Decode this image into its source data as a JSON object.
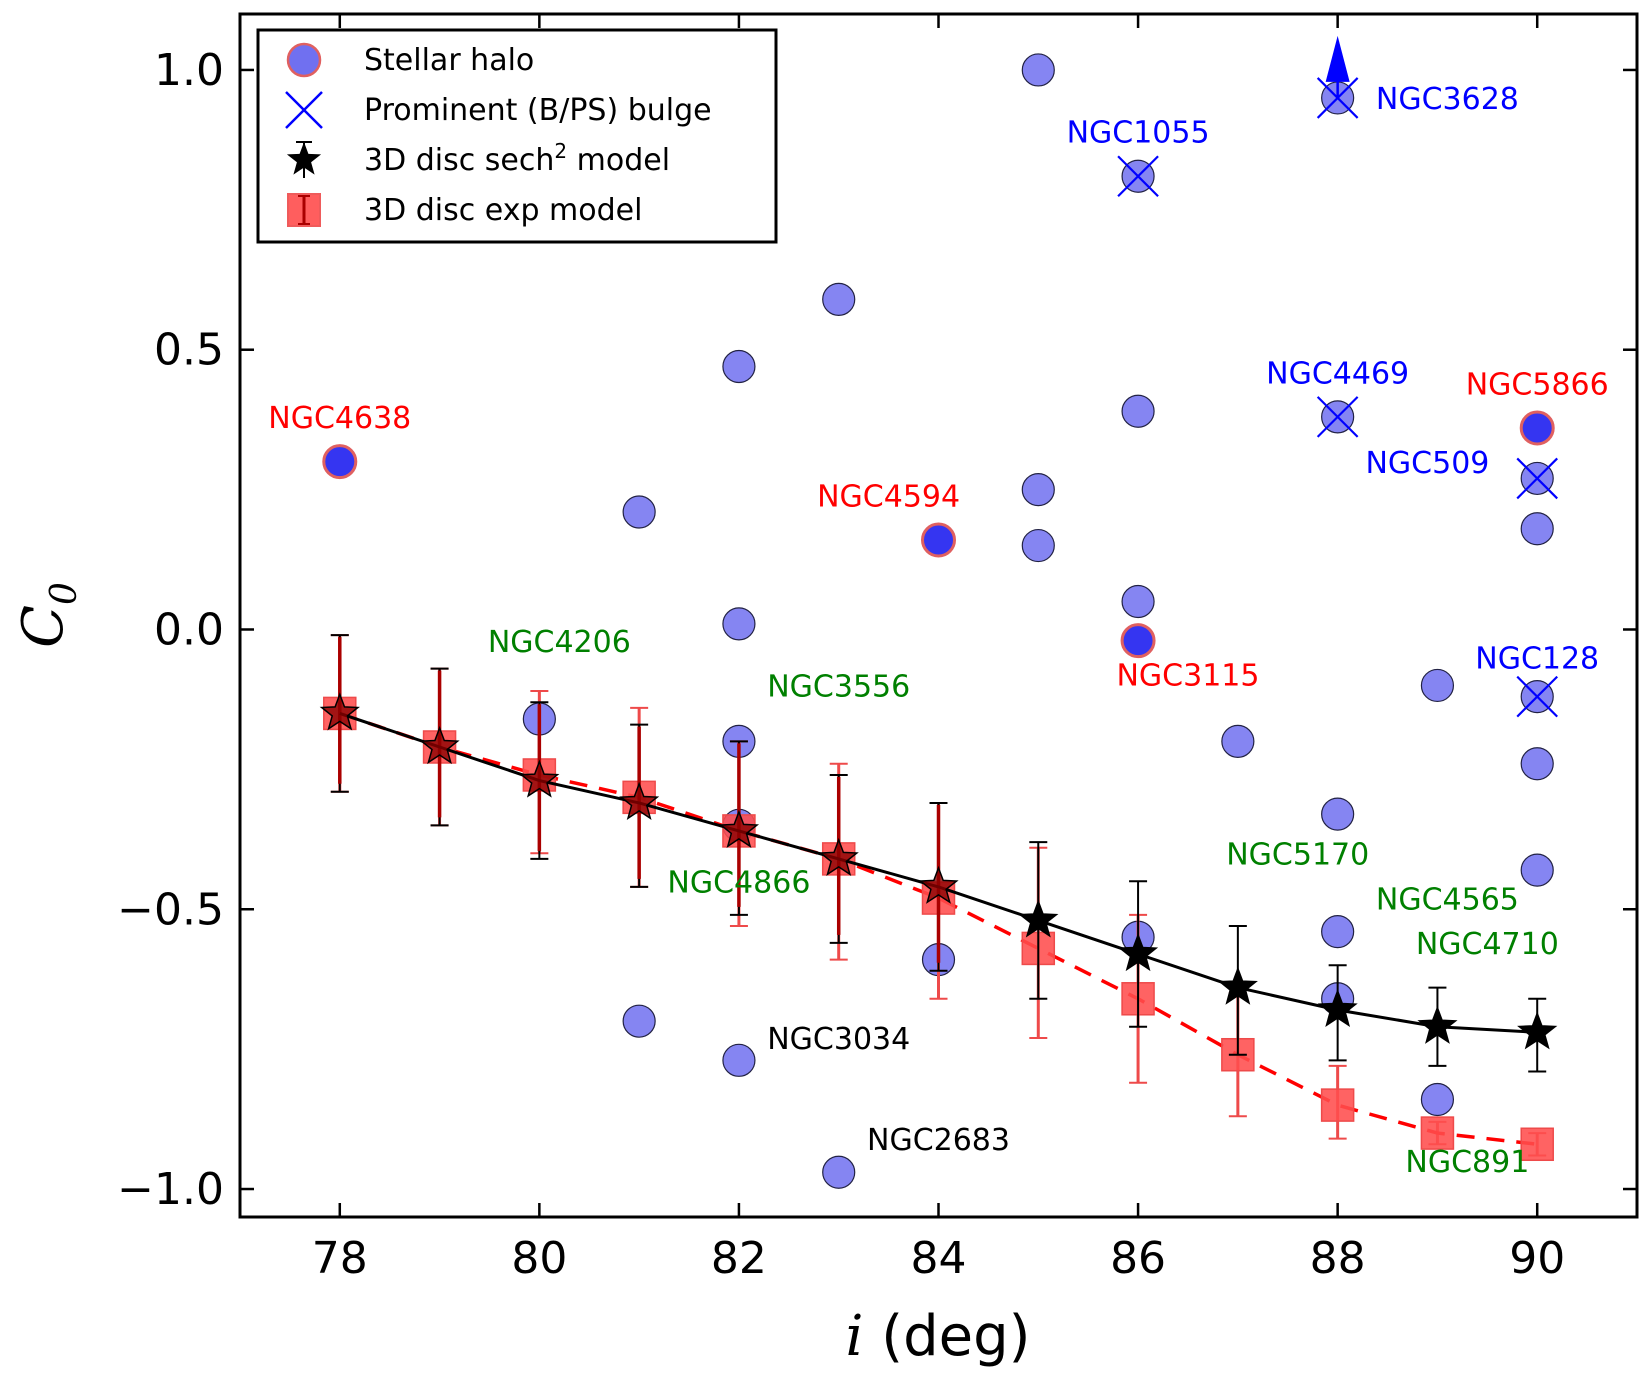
{
  "chart_data": {
    "type": "scatter",
    "xlabel": "i (deg)",
    "xlabel_symbol": "i",
    "xlabel_unit": "(deg)",
    "ylabel": "C0",
    "ylabel_symbol": "C",
    "ylabel_subscript": "0",
    "xlim": [
      77,
      91
    ],
    "ylim": [
      -1.05,
      1.1
    ],
    "x_ticks": [
      78,
      80,
      82,
      84,
      86,
      88,
      90
    ],
    "x_tick_labels": [
      "78",
      "80",
      "82",
      "84",
      "86",
      "88",
      "90"
    ],
    "y_ticks": [
      1.0,
      0.5,
      0.0,
      -0.5,
      -1.0
    ],
    "y_tick_labels": [
      "1.0",
      "0.5",
      "0.0",
      "−0.5",
      "−1.0"
    ],
    "grid": false,
    "legend": {
      "placement": "top-left",
      "entries": [
        {
          "label": "Stellar halo",
          "marker": "circle"
        },
        {
          "label": "Prominent (B/PS) bulge",
          "marker": "x"
        },
        {
          "label_main": "3D disc sech",
          "label_sup": "2",
          "label_tail": " model",
          "marker": "star"
        },
        {
          "label": "3D disc exp model",
          "marker": "square"
        }
      ]
    },
    "colors": {
      "halo_fill": "#7070f0",
      "halo_dark_fill": "#2a2af0",
      "halo_ring": "#e06060",
      "bulge_cross": "#0000ff",
      "sech2_line": "#000000",
      "exp_line": "#ff0000",
      "exp_fill": "#ff4d4d",
      "exp_err": "#ee4a4a",
      "dark_err": "#aa0000",
      "label_blue": "#0000ff",
      "label_red": "#ff0000",
      "label_green": "#008000",
      "label_black": "#000000"
    },
    "galaxies": [
      {
        "x": 78,
        "y": 0.3,
        "ring": true,
        "dark": true
      },
      {
        "x": 80,
        "y": -0.16
      },
      {
        "x": 81,
        "y": 0.21
      },
      {
        "x": 81,
        "y": -0.7
      },
      {
        "x": 82,
        "y": 0.47
      },
      {
        "x": 82,
        "y": 0.01
      },
      {
        "x": 82,
        "y": -0.2
      },
      {
        "x": 82,
        "y": -0.35
      },
      {
        "x": 82,
        "y": -0.77
      },
      {
        "x": 83,
        "y": 0.59
      },
      {
        "x": 83,
        "y": -0.97
      },
      {
        "x": 84,
        "y": 0.16,
        "ring": true,
        "dark": true
      },
      {
        "x": 84,
        "y": -0.59
      },
      {
        "x": 85,
        "y": 1.0
      },
      {
        "x": 85,
        "y": 0.25
      },
      {
        "x": 85,
        "y": 0.15
      },
      {
        "x": 86,
        "y": 0.81,
        "bulge": true
      },
      {
        "x": 86,
        "y": 0.39
      },
      {
        "x": 86,
        "y": 0.05
      },
      {
        "x": 86,
        "y": -0.02,
        "ring": true,
        "dark": true
      },
      {
        "x": 86,
        "y": -0.55
      },
      {
        "x": 87,
        "y": -0.2
      },
      {
        "x": 88,
        "y": 0.95,
        "bulge": true,
        "arrow": true
      },
      {
        "x": 88,
        "y": 0.38,
        "bulge": true
      },
      {
        "x": 88,
        "y": -0.33
      },
      {
        "x": 88,
        "y": -0.54
      },
      {
        "x": 88,
        "y": -0.66
      },
      {
        "x": 89,
        "y": -0.1
      },
      {
        "x": 89,
        "y": -0.84
      },
      {
        "x": 90,
        "y": 0.36,
        "ring": true,
        "dark": true
      },
      {
        "x": 90,
        "y": 0.27,
        "bulge": true
      },
      {
        "x": 90,
        "y": 0.18
      },
      {
        "x": 90,
        "y": -0.12,
        "bulge": true
      },
      {
        "x": 90,
        "y": -0.24
      },
      {
        "x": 90,
        "y": -0.43
      }
    ],
    "series": [
      {
        "name": "3D disc sech2 model",
        "x": [
          78,
          79,
          80,
          81,
          82,
          83,
          84,
          85,
          86,
          87,
          88,
          89,
          90
        ],
        "y": [
          -0.15,
          -0.21,
          -0.27,
          -0.31,
          -0.36,
          -0.41,
          -0.46,
          -0.52,
          -0.58,
          -0.64,
          -0.68,
          -0.71,
          -0.72
        ],
        "err_lo": [
          -0.29,
          -0.35,
          -0.41,
          -0.46,
          -0.51,
          -0.56,
          -0.61,
          -0.66,
          -0.71,
          -0.76,
          -0.77,
          -0.78,
          -0.79
        ],
        "err_hi": [
          -0.01,
          -0.07,
          -0.13,
          -0.17,
          -0.2,
          -0.26,
          -0.31,
          -0.38,
          -0.45,
          -0.53,
          -0.6,
          -0.64,
          -0.66
        ]
      },
      {
        "name": "3D disc exp model",
        "x": [
          78,
          79,
          80,
          81,
          82,
          83,
          84,
          85,
          86,
          87,
          88,
          89,
          90
        ],
        "y": [
          -0.15,
          -0.21,
          -0.26,
          -0.3,
          -0.36,
          -0.41,
          -0.48,
          -0.57,
          -0.66,
          -0.76,
          -0.85,
          -0.9,
          -0.92
        ],
        "err_lo": [
          -0.29,
          -0.35,
          -0.4,
          -0.46,
          -0.53,
          -0.59,
          -0.66,
          -0.73,
          -0.81,
          -0.87,
          -0.91,
          -0.92,
          -0.94
        ],
        "err_hi": [
          -0.01,
          -0.07,
          -0.11,
          -0.14,
          -0.2,
          -0.24,
          -0.31,
          -0.39,
          -0.51,
          -0.65,
          -0.78,
          -0.88,
          -0.9
        ]
      }
    ],
    "annotations": [
      {
        "text": "NGC4638",
        "x": 78.0,
        "y": 0.36,
        "color": "red"
      },
      {
        "text": "NGC4594",
        "x": 83.5,
        "y": 0.22,
        "color": "red"
      },
      {
        "text": "NGC3115",
        "x": 86.5,
        "y": -0.1,
        "color": "red"
      },
      {
        "text": "NGC5866",
        "x": 90.0,
        "y": 0.42,
        "color": "red"
      },
      {
        "text": "NGC1055",
        "x": 86.0,
        "y": 0.87,
        "color": "blue"
      },
      {
        "text": "NGC3628",
        "x": 89.1,
        "y": 0.93,
        "color": "blue"
      },
      {
        "text": "NGC4469",
        "x": 88.0,
        "y": 0.44,
        "color": "blue"
      },
      {
        "text": "NGC509",
        "x": 88.9,
        "y": 0.28,
        "color": "blue"
      },
      {
        "text": "NGC128",
        "x": 90.0,
        "y": -0.07,
        "color": "blue"
      },
      {
        "text": "NGC4206",
        "x": 80.2,
        "y": -0.04,
        "color": "green"
      },
      {
        "text": "NGC3556",
        "x": 83.0,
        "y": -0.12,
        "color": "green"
      },
      {
        "text": "NGC4866",
        "x": 82.0,
        "y": -0.47,
        "color": "green"
      },
      {
        "text": "NGC5170",
        "x": 87.6,
        "y": -0.42,
        "color": "green"
      },
      {
        "text": "NGC4565",
        "x": 89.1,
        "y": -0.5,
        "color": "green"
      },
      {
        "text": "NGC4710",
        "x": 89.5,
        "y": -0.58,
        "color": "green"
      },
      {
        "text": "NGC891",
        "x": 89.3,
        "y": -0.97,
        "color": "green"
      },
      {
        "text": "NGC3034",
        "x": 83.0,
        "y": -0.75,
        "color": "black"
      },
      {
        "text": "NGC2683",
        "x": 84.0,
        "y": -0.93,
        "color": "black"
      }
    ]
  }
}
